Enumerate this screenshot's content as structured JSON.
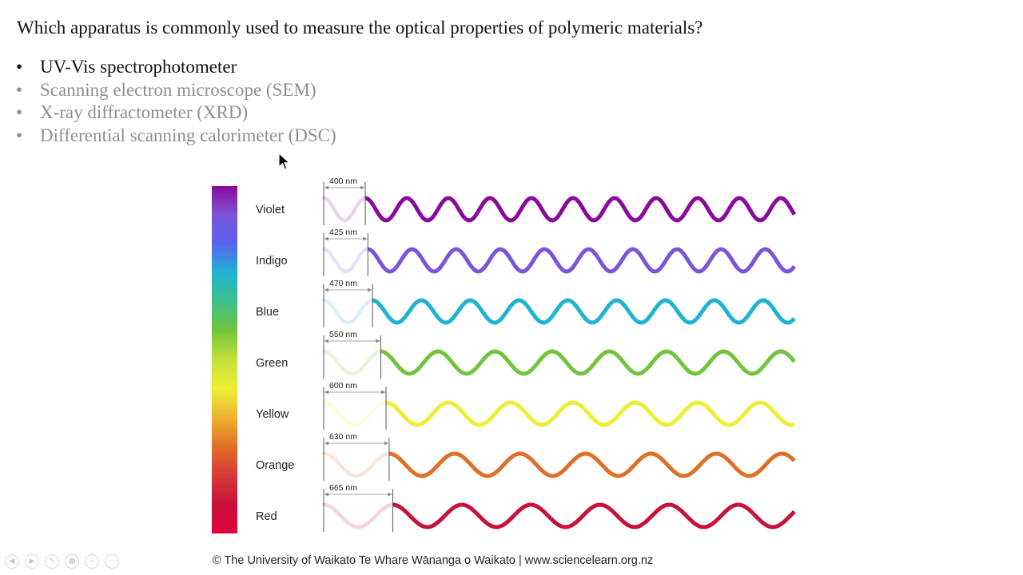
{
  "slide": {
    "question": "Which apparatus is commonly used to measure the optical properties of polymeric materials?",
    "bullet_glyph": "•",
    "options": [
      {
        "label": "UV-Vis spectrophotometer",
        "state": "active"
      },
      {
        "label": "Scanning electron microscope (SEM)",
        "state": "dim"
      },
      {
        "label": "X-ray diffractometer (XRD)",
        "state": "dim"
      },
      {
        "label": "Differential scanning calorimeter (DSC)",
        "state": "dim"
      }
    ]
  },
  "figure": {
    "bands": [
      {
        "name": "Violet",
        "wavelength": "400 nm",
        "wavelength_nm": 400,
        "color": "#8a0a9b"
      },
      {
        "name": "Indigo",
        "wavelength": "425 nm",
        "wavelength_nm": 425,
        "color": "#7b55d9"
      },
      {
        "name": "Blue",
        "wavelength": "470 nm",
        "wavelength_nm": 470,
        "color": "#1eb3d2"
      },
      {
        "name": "Green",
        "wavelength": "550 nm",
        "wavelength_nm": 550,
        "color": "#72c43e"
      },
      {
        "name": "Yellow",
        "wavelength": "600 nm",
        "wavelength_nm": 600,
        "color": "#ecef36"
      },
      {
        "name": "Orange",
        "wavelength": "630 nm",
        "wavelength_nm": 630,
        "color": "#de7027"
      },
      {
        "name": "Red",
        "wavelength": "665 nm",
        "wavelength_nm": 665,
        "color": "#c8113b"
      }
    ],
    "gradient_colors": [
      "#8a0a9b",
      "#7b55d9",
      "#5a63f0",
      "#1eb3d2",
      "#3fbf8a",
      "#72c43e",
      "#c4e03a",
      "#ecef36",
      "#f0b030",
      "#de7027",
      "#d83a3a",
      "#c8113b",
      "#e0043a"
    ],
    "copyright": "© The University of Waikato Te Whare Wānanga o Waikato | www.sciencelearn.org.nz"
  },
  "toolbar": {
    "buttons": [
      {
        "icon": "prev-arrow-icon",
        "glyph": "◀"
      },
      {
        "icon": "next-arrow-icon",
        "glyph": "▶"
      },
      {
        "icon": "pen-icon",
        "glyph": "✎"
      },
      {
        "icon": "slides-icon",
        "glyph": "▦"
      },
      {
        "icon": "zoom-icon",
        "glyph": "⌕"
      },
      {
        "icon": "more-icon",
        "glyph": "⋯"
      }
    ]
  }
}
